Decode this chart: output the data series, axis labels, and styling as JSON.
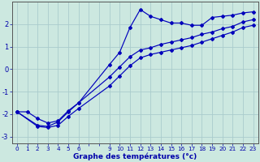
{
  "xlabel": "Graphe des températures (°c)",
  "background_color": "#cce8e0",
  "grid_color": "#aacccc",
  "line_color": "#0000bb",
  "xlim": [
    -0.5,
    23.5
  ],
  "ylim": [
    -3.3,
    3.0
  ],
  "xticks": [
    0,
    1,
    2,
    3,
    4,
    5,
    6,
    9,
    10,
    11,
    12,
    13,
    14,
    15,
    16,
    17,
    18,
    19,
    20,
    21,
    22,
    23
  ],
  "yticks": [
    -3,
    -2,
    -1,
    0,
    1,
    2
  ],
  "line1_x": [
    0,
    1,
    2,
    3,
    4,
    5,
    6,
    9,
    10,
    11,
    12,
    13,
    14,
    15,
    16,
    17,
    18,
    19,
    20,
    21,
    22,
    23
  ],
  "line1_y": [
    -1.9,
    -1.9,
    -2.2,
    -2.4,
    -2.3,
    -1.85,
    -1.5,
    0.2,
    0.75,
    1.85,
    2.65,
    2.35,
    2.2,
    2.05,
    2.05,
    1.95,
    1.95,
    2.3,
    2.35,
    2.4,
    2.5,
    2.55
  ],
  "line2_x": [
    0,
    2,
    3,
    4,
    5,
    6,
    9,
    10,
    11,
    12,
    13,
    14,
    15,
    16,
    17,
    18,
    19,
    20,
    21,
    22,
    23
  ],
  "line2_y": [
    -1.9,
    -2.5,
    -2.55,
    -2.35,
    -1.9,
    -1.5,
    -0.35,
    0.1,
    0.55,
    0.85,
    0.95,
    1.1,
    1.2,
    1.3,
    1.4,
    1.55,
    1.65,
    1.8,
    1.9,
    2.1,
    2.2
  ],
  "line3_x": [
    0,
    2,
    3,
    4,
    5,
    6,
    9,
    10,
    11,
    12,
    13,
    14,
    15,
    16,
    17,
    18,
    19,
    20,
    21,
    22,
    23
  ],
  "line3_y": [
    -1.9,
    -2.55,
    -2.6,
    -2.5,
    -2.1,
    -1.75,
    -0.75,
    -0.3,
    0.15,
    0.5,
    0.65,
    0.75,
    0.85,
    0.95,
    1.05,
    1.2,
    1.35,
    1.5,
    1.65,
    1.85,
    1.95
  ]
}
